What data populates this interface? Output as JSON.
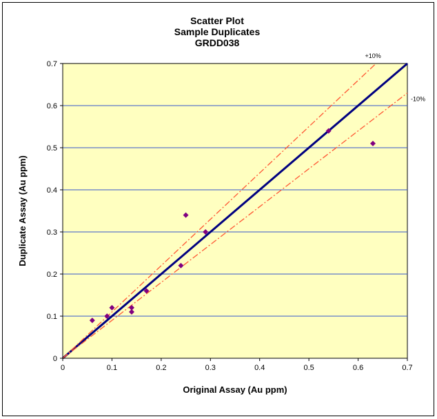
{
  "chart_data": {
    "type": "scatter",
    "title": [
      "Scatter Plot",
      "Sample Duplicates",
      "GRDD038"
    ],
    "xlabel": "Original Assay (Au ppm)",
    "ylabel": "Duplicate Assay (Au ppm)",
    "xlim": [
      0,
      0.7
    ],
    "ylim": [
      0,
      0.7
    ],
    "xticks": [
      "0",
      "0.1",
      "0.2",
      "0.3",
      "0.4",
      "0.5",
      "0.6",
      "0.7"
    ],
    "yticks": [
      "0",
      "0.1",
      "0.2",
      "0.3",
      "0.4",
      "0.5",
      "0.6",
      "0.7"
    ],
    "grid": "horizontal",
    "colors": {
      "plot_background": "#ffffc0",
      "gridline": "#3355cc",
      "points": "#800080",
      "equal_line": "#000080",
      "band_lines": "#ff5533"
    },
    "lines": [
      {
        "slope": 1.0,
        "label": "",
        "style": "solid"
      },
      {
        "slope": 1.1,
        "label": "+10%",
        "style": "dashdot"
      },
      {
        "slope": 0.9,
        "label": "-10%",
        "style": "dashdot"
      }
    ],
    "points": [
      {
        "x": 0.06,
        "y": 0.09
      },
      {
        "x": 0.09,
        "y": 0.1
      },
      {
        "x": 0.1,
        "y": 0.12
      },
      {
        "x": 0.14,
        "y": 0.11
      },
      {
        "x": 0.14,
        "y": 0.12
      },
      {
        "x": 0.17,
        "y": 0.16
      },
      {
        "x": 0.24,
        "y": 0.22
      },
      {
        "x": 0.25,
        "y": 0.34
      },
      {
        "x": 0.29,
        "y": 0.3
      },
      {
        "x": 0.54,
        "y": 0.54
      },
      {
        "x": 0.63,
        "y": 0.51
      }
    ]
  }
}
